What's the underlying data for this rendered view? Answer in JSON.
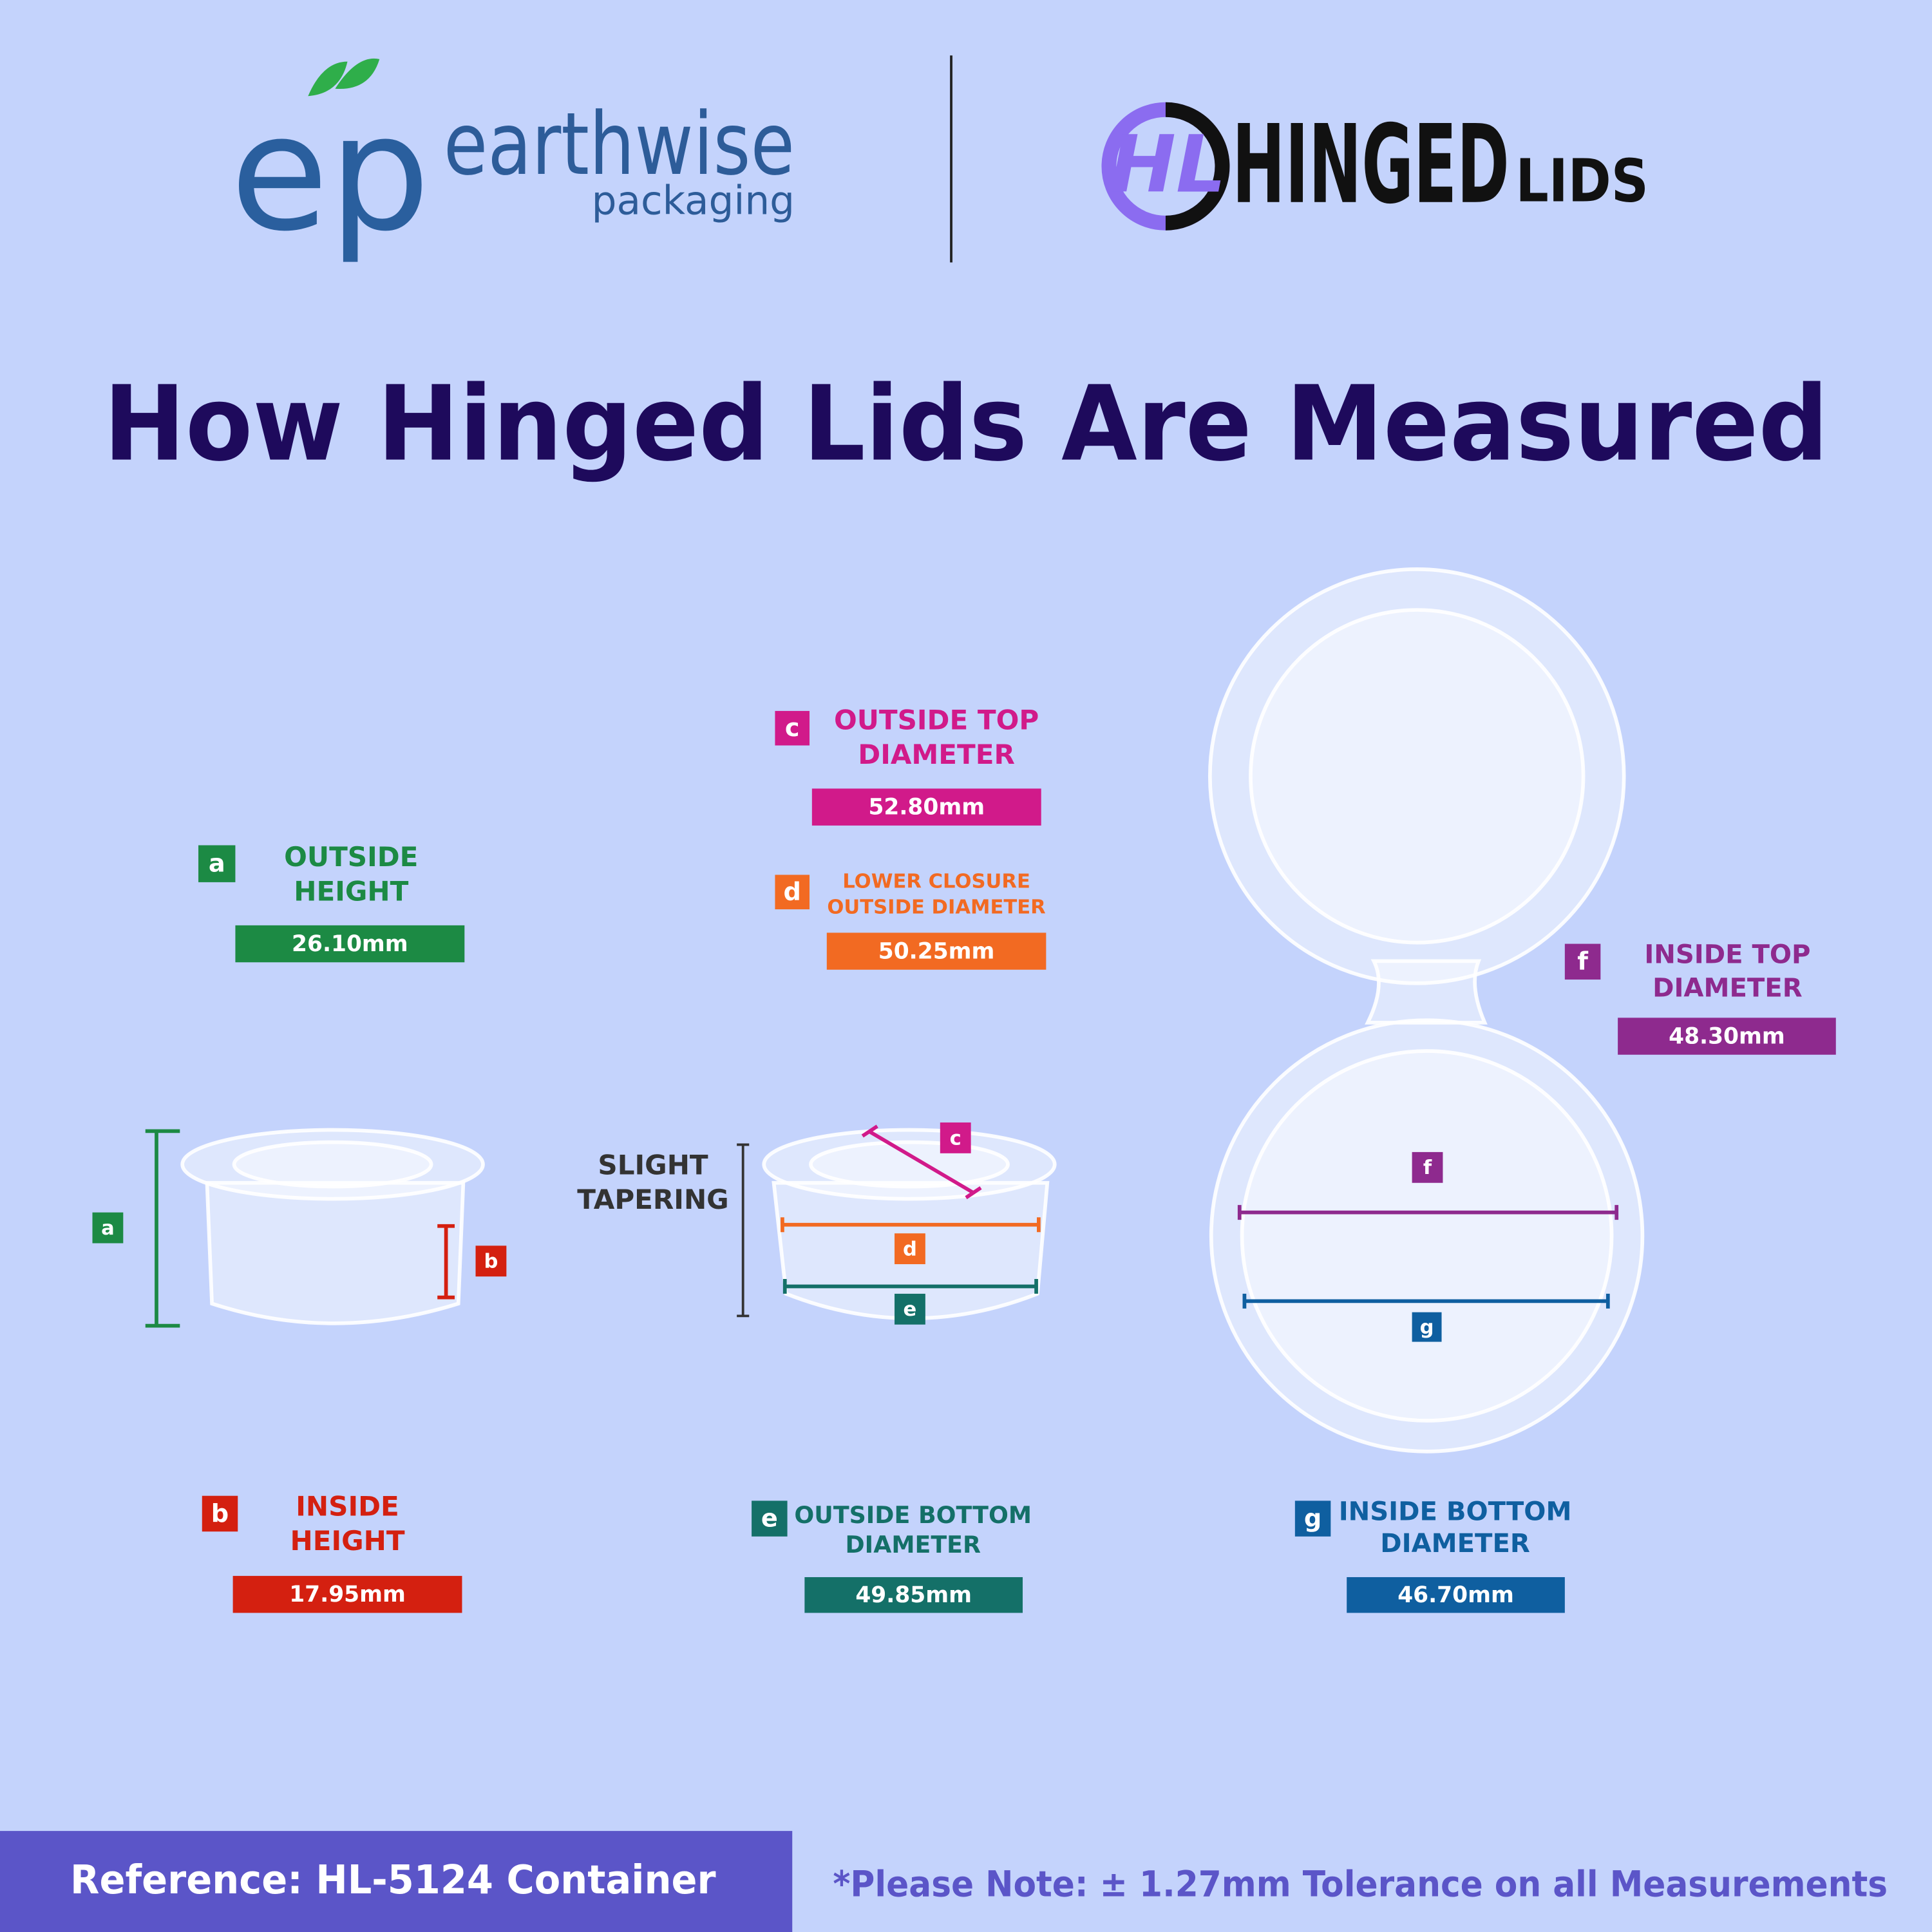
{
  "header": {
    "brand_mark": "ep",
    "brand_name": "earthwise",
    "brand_sub": "packaging",
    "partner_mark": "HL",
    "partner_name": "HINGED",
    "partner_sub": "LIDS"
  },
  "title": "How Hinged Lids Are Measured",
  "measurements": [
    {
      "letter": "a",
      "label": [
        "OUTSIDE",
        "HEIGHT"
      ],
      "value": "26.10mm"
    },
    {
      "letter": "b",
      "label": [
        "INSIDE",
        "HEIGHT"
      ],
      "value": "17.95mm"
    },
    {
      "letter": "c",
      "label": [
        "OUTSIDE TOP",
        "DIAMETER"
      ],
      "value": "52.80mm"
    },
    {
      "letter": "d",
      "label": [
        "LOWER CLOSURE",
        "OUTSIDE DIAMETER"
      ],
      "value": "50.25mm"
    },
    {
      "letter": "e",
      "label": [
        "OUTSIDE BOTTOM",
        "DIAMETER"
      ],
      "value": "49.85mm"
    },
    {
      "letter": "f",
      "label": [
        "INSIDE TOP",
        "DIAMETER"
      ],
      "value": "48.30mm"
    },
    {
      "letter": "g",
      "label": [
        "INSIDE BOTTOM",
        "DIAMETER"
      ],
      "value": "46.70mm"
    }
  ],
  "tapering": [
    "SLIGHT",
    "TAPERING"
  ],
  "footer": {
    "reference": "Reference: HL-5124 Container",
    "note": "*Please Note: ± 1.27mm Tolerance on all Measurements"
  }
}
